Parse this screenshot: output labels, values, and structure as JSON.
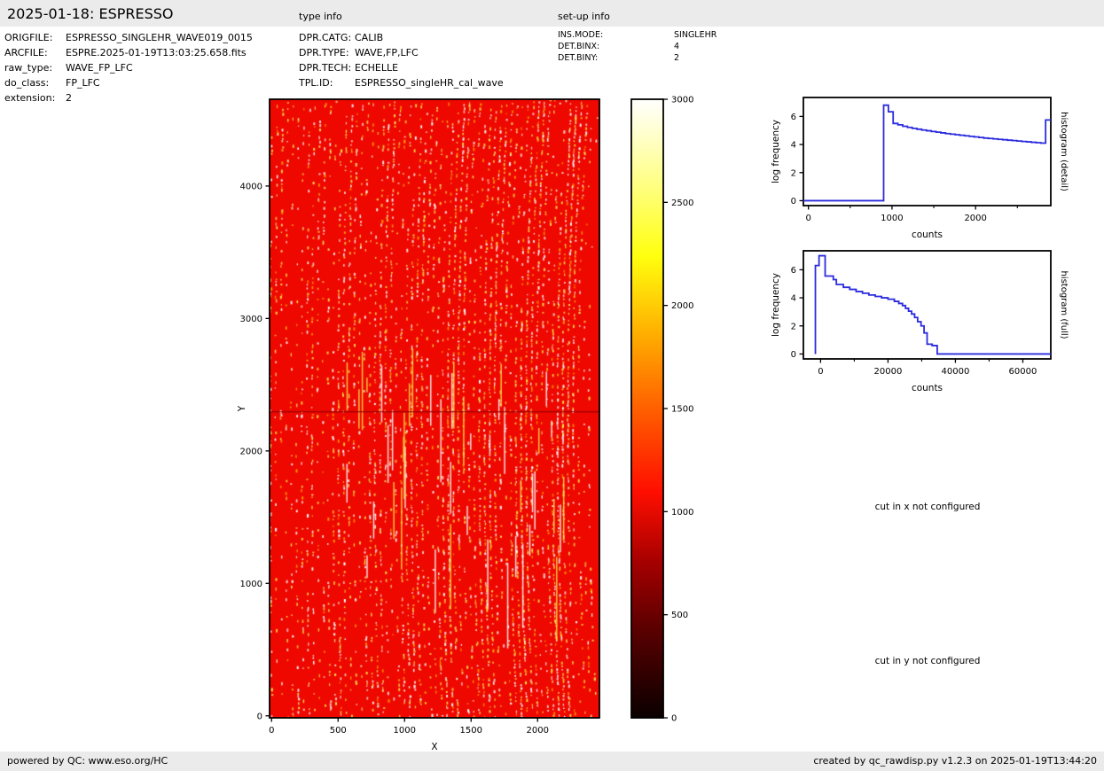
{
  "header": {
    "title": "2025-01-18: ESPRESSO",
    "type_info_label": "type info",
    "setup_info_label": "set-up info"
  },
  "file_info": {
    "rows": [
      {
        "label": "ORIGFILE:",
        "value": "ESPRESSO_SINGLEHR_WAVE019_0015"
      },
      {
        "label": "ARCFILE:",
        "value": "ESPRE.2025-01-19T13:03:25.658.fits"
      },
      {
        "label": "raw_type:",
        "value": "WAVE_FP_LFC"
      },
      {
        "label": "do_class:",
        "value": "FP_LFC"
      },
      {
        "label": "extension:",
        "value": "2"
      }
    ]
  },
  "type_info": {
    "rows": [
      {
        "label": "DPR.CATG:",
        "value": "CALIB"
      },
      {
        "label": "DPR.TYPE:",
        "value": "WAVE,FP,LFC"
      },
      {
        "label": "DPR.TECH:",
        "value": "ECHELLE"
      },
      {
        "label": "TPL.ID:",
        "value": "ESPRESSO_singleHR_cal_wave"
      }
    ]
  },
  "setup_info": {
    "rows": [
      {
        "label": "INS.MODE:",
        "value": "SINGLEHR"
      },
      {
        "label": "DET.BINX:",
        "value": "4"
      },
      {
        "label": "DET.BINY:",
        "value": "2"
      }
    ]
  },
  "messages": {
    "cut_x": "cut in x not configured",
    "cut_y": "cut in y not configured"
  },
  "footer": {
    "left": "powered by QC: www.eso.org/HC",
    "right": "created by qc_rawdisp.py v1.2.3 on 2025-01-19T13:44:20"
  },
  "chart_data": [
    {
      "id": "raw_frame",
      "type": "heatmap",
      "description": "ESPRESSO raw echelle calibration frame (WAVE,FP,LFC): red background with curved columns of yellow/white emission-line dots, detector seam at Y~2300, density increasing to the right",
      "xlabel": "X",
      "ylabel": "Y",
      "xlim": [
        -15,
        2465
      ],
      "ylim": [
        -15,
        4655
      ],
      "xticks": [
        0,
        500,
        1000,
        1500,
        2000
      ],
      "yticks": [
        0,
        1000,
        2000,
        3000,
        4000
      ],
      "colormap": "hot",
      "vmin": 0,
      "vmax": 3000,
      "bg_color": "#ee0800",
      "dot_colors": [
        "#ffffff",
        "#ffe14d",
        "#ff9b00",
        "#ffd27a"
      ],
      "seam_color": "rgba(150,0,0,0.9)",
      "gap_y_data": 2300,
      "n_columns": 62,
      "seed": 11
    },
    {
      "id": "colorbar",
      "type": "colorbar",
      "vmin": 0,
      "vmax": 3000,
      "ticks": [
        0,
        500,
        1000,
        1500,
        2000,
        2500,
        3000
      ],
      "colormap": "hot",
      "gradient": [
        [
          0.0,
          "#0a0000"
        ],
        [
          0.15,
          "#5e0000"
        ],
        [
          0.25,
          "#a40000"
        ],
        [
          0.365,
          "#ff0e00"
        ],
        [
          0.5,
          "#ff6000"
        ],
        [
          0.62,
          "#ffae00"
        ],
        [
          0.746,
          "#ffff0e"
        ],
        [
          0.85,
          "#ffff78"
        ],
        [
          1.0,
          "#ffffff"
        ]
      ]
    },
    {
      "id": "hist_detail",
      "type": "line",
      "right_label": "histogram (detail)",
      "xlabel": "counts",
      "ylabel": "log frequency",
      "xlim": [
        -60,
        2900
      ],
      "ylim": [
        -0.35,
        7.35
      ],
      "xticks": [
        0,
        1000,
        2000
      ],
      "xticks_minor": [
        500,
        1500,
        2500
      ],
      "yticks": [
        0,
        2,
        4,
        6
      ],
      "line_color": "#2b2bdf",
      "lead_zero_from": -60,
      "line_end": 2900,
      "bins": [
        [
          900,
          6.8
        ],
        [
          957,
          6.33
        ],
        [
          1014,
          5.5
        ],
        [
          1071,
          5.4
        ],
        [
          1128,
          5.3
        ],
        [
          1185,
          5.22
        ],
        [
          1242,
          5.15
        ],
        [
          1299,
          5.09
        ],
        [
          1356,
          5.03
        ],
        [
          1413,
          4.98
        ],
        [
          1470,
          4.93
        ],
        [
          1527,
          4.88
        ],
        [
          1584,
          4.83
        ],
        [
          1641,
          4.78
        ],
        [
          1698,
          4.74
        ],
        [
          1755,
          4.7
        ],
        [
          1812,
          4.66
        ],
        [
          1869,
          4.62
        ],
        [
          1926,
          4.58
        ],
        [
          1983,
          4.54
        ],
        [
          2040,
          4.5
        ],
        [
          2097,
          4.46
        ],
        [
          2154,
          4.43
        ],
        [
          2211,
          4.4
        ],
        [
          2268,
          4.37
        ],
        [
          2325,
          4.34
        ],
        [
          2382,
          4.31
        ],
        [
          2439,
          4.28
        ],
        [
          2496,
          4.25
        ],
        [
          2553,
          4.22
        ],
        [
          2610,
          4.19
        ],
        [
          2667,
          4.16
        ],
        [
          2724,
          4.13
        ],
        [
          2781,
          4.1
        ],
        [
          2838,
          5.75
        ]
      ]
    },
    {
      "id": "hist_full",
      "type": "line",
      "right_label": "histogram (full)",
      "xlabel": "counts",
      "ylabel": "log frequency",
      "xlim": [
        -5100,
        68300
      ],
      "ylim": [
        -0.35,
        7.35
      ],
      "xticks": [
        0,
        20000,
        40000,
        60000
      ],
      "xticks_minor": [
        10000,
        30000,
        50000
      ],
      "yticks": [
        0,
        2,
        4,
        6
      ],
      "line_color": "#2b2bdf",
      "lead_zero_from": null,
      "line_end": 68300,
      "bins": [
        [
          -1540,
          6.3
        ],
        [
          -460,
          7.0
        ],
        [
          1350,
          5.55
        ],
        [
          3780,
          5.3
        ],
        [
          4680,
          4.95
        ],
        [
          6760,
          4.75
        ],
        [
          8650,
          4.6
        ],
        [
          10540,
          4.45
        ],
        [
          12430,
          4.33
        ],
        [
          14320,
          4.2
        ],
        [
          16220,
          4.1
        ],
        [
          18100,
          4.0
        ],
        [
          20000,
          3.9
        ],
        [
          21890,
          3.75
        ],
        [
          23200,
          3.6
        ],
        [
          24300,
          3.45
        ],
        [
          25200,
          3.25
        ],
        [
          26100,
          3.05
        ],
        [
          27000,
          2.85
        ],
        [
          27900,
          2.6
        ],
        [
          28800,
          2.3
        ],
        [
          29800,
          2.0
        ],
        [
          30700,
          1.5
        ],
        [
          31600,
          0.7
        ],
        [
          33100,
          0.6
        ],
        [
          34600,
          0.0
        ]
      ]
    }
  ]
}
